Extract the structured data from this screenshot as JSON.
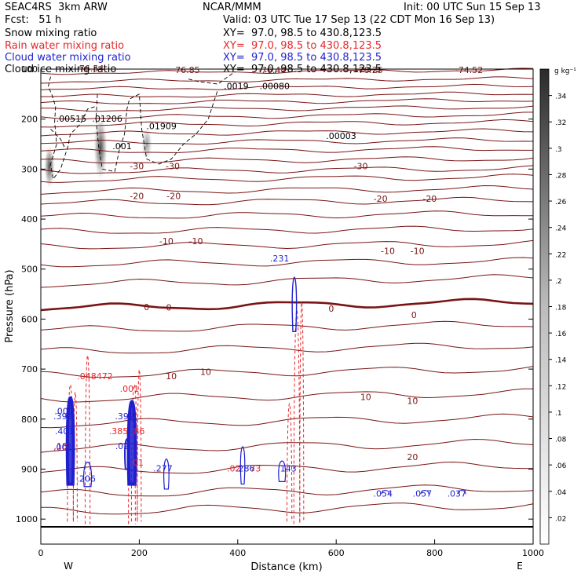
{
  "header": {
    "model": "SEAC4RS  3km ARW",
    "org": "NCAR/MMM",
    "init": "Init: 00 UTC Sun 15 Sep 13",
    "fcst": "Fcst:   51 h",
    "valid": "Valid: 03 UTC Tue 17 Sep 13 (22 CDT Mon 16 Sep 13)"
  },
  "legend": [
    {
      "label": "Snow mixing ratio",
      "xy": "XY=  97.0, 98.5 to 430.8,123.5",
      "color": "#000000"
    },
    {
      "label": "Rain water mixing ratio",
      "xy": "XY=  97.0, 98.5 to 430.8,123.5",
      "color": "#e8262a"
    },
    {
      "label": "Cloud water mixing ratio",
      "xy": "XY=  97.0, 98.5 to 430.8,123.5",
      "color": "#1f1fd0"
    },
    {
      "label": "Cloud ice mixing ratio",
      "xy": "XY=  97.0, 98.5 to 430.8,123.5",
      "color": "#000000"
    }
  ],
  "colorbar": {
    "unit": "g kg⁻¹",
    "ticks": [
      ".02",
      ".04",
      ".06",
      ".08",
      ".1",
      ".12",
      ".14",
      ".16",
      ".18",
      ".2",
      ".22",
      ".24",
      ".26",
      ".28",
      ".3",
      ".32",
      ".34"
    ]
  },
  "chart_data": {
    "type": "cross-section contour",
    "xlabel": "Distance (km)",
    "ylabel": "Pressure (hPa)",
    "xlim": [
      0,
      1000
    ],
    "ylim": [
      1050,
      100
    ],
    "xticks": [
      "0",
      "200",
      "400",
      "600",
      "800",
      "1000"
    ],
    "yticks": [
      "100",
      "200",
      "300",
      "400",
      "500",
      "600",
      "700",
      "800",
      "900",
      "1000"
    ],
    "x_end_labels": {
      "left": "W",
      "right": "E"
    },
    "temperature_labels": [
      {
        "text": "-76.54",
        "x": 100,
        "p": 105
      },
      {
        "text": "-76.85",
        "x": 295,
        "p": 108
      },
      {
        "text": "-76.44",
        "x": 470,
        "p": 108
      },
      {
        "text": "-76.25",
        "x": 667,
        "p": 108
      },
      {
        "text": "-74.52",
        "x": 870,
        "p": 108
      },
      {
        "text": "-30",
        "x": 195,
        "p": 300
      },
      {
        "text": "-30",
        "x": 268,
        "p": 300
      },
      {
        "text": "-30",
        "x": 650,
        "p": 300
      },
      {
        "text": "-20",
        "x": 195,
        "p": 360
      },
      {
        "text": "-20",
        "x": 270,
        "p": 360
      },
      {
        "text": "-20",
        "x": 690,
        "p": 365
      },
      {
        "text": "-20",
        "x": 790,
        "p": 365
      },
      {
        "text": "-10",
        "x": 255,
        "p": 450
      },
      {
        "text": "-10",
        "x": 315,
        "p": 450
      },
      {
        "text": "-10",
        "x": 705,
        "p": 470
      },
      {
        "text": "-10",
        "x": 765,
        "p": 470
      },
      {
        "text": "0",
        "x": 215,
        "p": 582
      },
      {
        "text": "0",
        "x": 260,
        "p": 583
      },
      {
        "text": "0",
        "x": 590,
        "p": 585
      },
      {
        "text": "0",
        "x": 758,
        "p": 598
      },
      {
        "text": "10",
        "x": 265,
        "p": 720
      },
      {
        "text": "10",
        "x": 335,
        "p": 712
      },
      {
        "text": "10",
        "x": 660,
        "p": 762
      },
      {
        "text": "10",
        "x": 755,
        "p": 770
      },
      {
        "text": "20",
        "x": 755,
        "p": 882
      }
    ],
    "snow_labels": [
      {
        "text": ".00515",
        "x": 62,
        "p": 205
      },
      {
        "text": ".01206",
        "x": 135,
        "p": 205
      },
      {
        "text": ".01909",
        "x": 245,
        "p": 220
      },
      {
        "text": ".0019",
        "x": 397,
        "p": 140
      },
      {
        "text": ".00080",
        "x": 475,
        "p": 140
      },
      {
        "text": ".00003",
        "x": 610,
        "p": 240
      },
      {
        "text": ".001",
        "x": 165,
        "p": 260
      }
    ],
    "rain_labels": [
      {
        "text": ".048472",
        "x": 110,
        "p": 720
      },
      {
        "text": ".18",
        "x": 40,
        "p": 860
      },
      {
        "text": ".385",
        "x": 158,
        "p": 830
      },
      {
        "text": "86",
        "x": 200,
        "p": 830
      },
      {
        "text": ".001",
        "x": 180,
        "p": 745
      },
      {
        "text": ".01",
        "x": 195,
        "p": 893
      },
      {
        "text": ".02",
        "x": 392,
        "p": 905
      },
      {
        "text": "73",
        "x": 436,
        "p": 905
      }
    ],
    "cloud_water_labels": [
      {
        "text": ".231",
        "x": 485,
        "p": 485
      },
      {
        "text": ".001",
        "x": 47,
        "p": 790
      },
      {
        "text": ".392",
        "x": 45,
        "p": 800
      },
      {
        "text": ".401",
        "x": 48,
        "p": 830
      },
      {
        "text": ".001",
        "x": 45,
        "p": 862
      },
      {
        "text": ".392",
        "x": 170,
        "p": 800
      },
      {
        "text": ".02",
        "x": 165,
        "p": 860
      },
      {
        "text": ".206",
        "x": 92,
        "p": 925
      },
      {
        "text": ".277",
        "x": 248,
        "p": 905
      },
      {
        "text": ".286",
        "x": 415,
        "p": 905
      },
      {
        "text": ".143",
        "x": 500,
        "p": 905
      },
      {
        "text": ".054",
        "x": 695,
        "p": 955
      },
      {
        "text": ".057",
        "x": 775,
        "p": 955
      },
      {
        "text": ".037",
        "x": 845,
        "p": 955
      }
    ]
  }
}
